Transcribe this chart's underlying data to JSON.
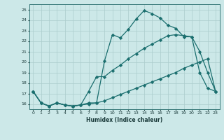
{
  "xlabel": "Humidex (Indice chaleur)",
  "bg_color": "#cce8e8",
  "grid_color": "#aacccc",
  "line_color": "#1a6e6e",
  "xlim": [
    -0.5,
    23.5
  ],
  "ylim": [
    15.5,
    25.5
  ],
  "xticks": [
    0,
    1,
    2,
    3,
    4,
    5,
    6,
    7,
    8,
    9,
    10,
    11,
    12,
    13,
    14,
    15,
    16,
    17,
    18,
    19,
    20,
    21,
    22,
    23
  ],
  "yticks": [
    16,
    17,
    18,
    19,
    20,
    21,
    22,
    23,
    24,
    25
  ],
  "line1_x": [
    0,
    1,
    2,
    3,
    4,
    5,
    6,
    7,
    8,
    9,
    10,
    11,
    12,
    13,
    14,
    15,
    16,
    17,
    18,
    19,
    20,
    21,
    22,
    23
  ],
  "line1_y": [
    17.2,
    16.1,
    15.8,
    16.1,
    15.9,
    15.8,
    15.9,
    16.1,
    16.1,
    20.1,
    22.6,
    22.3,
    23.1,
    24.1,
    24.9,
    24.6,
    24.2,
    23.5,
    23.2,
    22.4,
    22.4,
    21.0,
    19.0,
    17.2
  ],
  "line2_x": [
    0,
    1,
    2,
    3,
    4,
    5,
    6,
    7,
    8,
    9,
    10,
    11,
    12,
    13,
    14,
    15,
    16,
    17,
    18,
    19,
    20,
    21,
    22,
    23
  ],
  "line2_y": [
    17.2,
    16.1,
    15.8,
    16.1,
    15.9,
    15.8,
    15.9,
    16.0,
    16.1,
    16.3,
    16.6,
    16.9,
    17.2,
    17.5,
    17.8,
    18.1,
    18.4,
    18.7,
    19.0,
    19.4,
    19.7,
    20.0,
    20.3,
    17.2
  ],
  "line3_x": [
    0,
    1,
    2,
    3,
    4,
    5,
    6,
    7,
    8,
    9,
    10,
    11,
    12,
    13,
    14,
    15,
    16,
    17,
    18,
    19,
    20,
    21,
    22,
    23
  ],
  "line3_y": [
    17.2,
    16.1,
    15.8,
    16.1,
    15.9,
    15.8,
    15.9,
    17.2,
    18.6,
    18.6,
    19.2,
    19.7,
    20.3,
    20.8,
    21.3,
    21.7,
    22.1,
    22.5,
    22.6,
    22.5,
    22.4,
    19.0,
    17.5,
    17.2
  ]
}
